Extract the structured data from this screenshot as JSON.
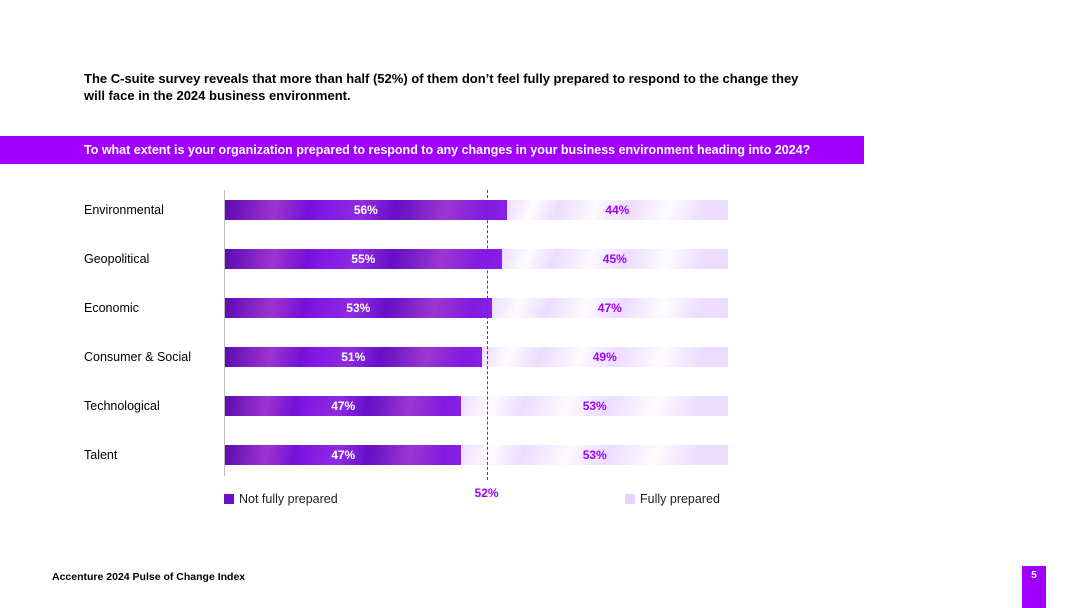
{
  "headline": "The C-suite survey reveals that more than half (52%) of them don’t feel fully prepared to respond to the change they will face in the 2024 business environment.",
  "banner_question": "To what extent is your  organization prepared to respond to  any changes in your business environment heading into 2024?",
  "chart_data": {
    "type": "bar",
    "orientation": "horizontal",
    "stacked": true,
    "title": "To what extent is your  organization prepared to respond to  any changes in your business environment heading into 2024?",
    "categories": [
      "Environmental",
      "Geopolitical",
      "Economic",
      "Consumer & Social",
      "Technological",
      "Talent"
    ],
    "series": [
      {
        "name": "Not fully prepared",
        "values": [
          56,
          55,
          53,
          51,
          47,
          47
        ],
        "labels": [
          "56%",
          "55%",
          "53%",
          "51%",
          "47%",
          "47%"
        ]
      },
      {
        "name": "Fully prepared",
        "values": [
          44,
          45,
          47,
          49,
          53,
          53
        ],
        "labels": [
          "44%",
          "45%",
          "47%",
          "49%",
          "53%",
          "53%"
        ]
      }
    ],
    "xlim": [
      0,
      100
    ],
    "reference_line": {
      "value": 52,
      "label": "52%"
    },
    "legend": {
      "not_fully_prepared": "Not fully prepared",
      "fully_prepared": "Fully prepared"
    },
    "colors": {
      "not_fully_prepared": "#6a10c8",
      "fully_prepared": "#e6d4ff",
      "accent": "#a100ff"
    }
  },
  "footer": {
    "source": "Accenture 2024 Pulse of Change Index",
    "page_number": "5"
  }
}
